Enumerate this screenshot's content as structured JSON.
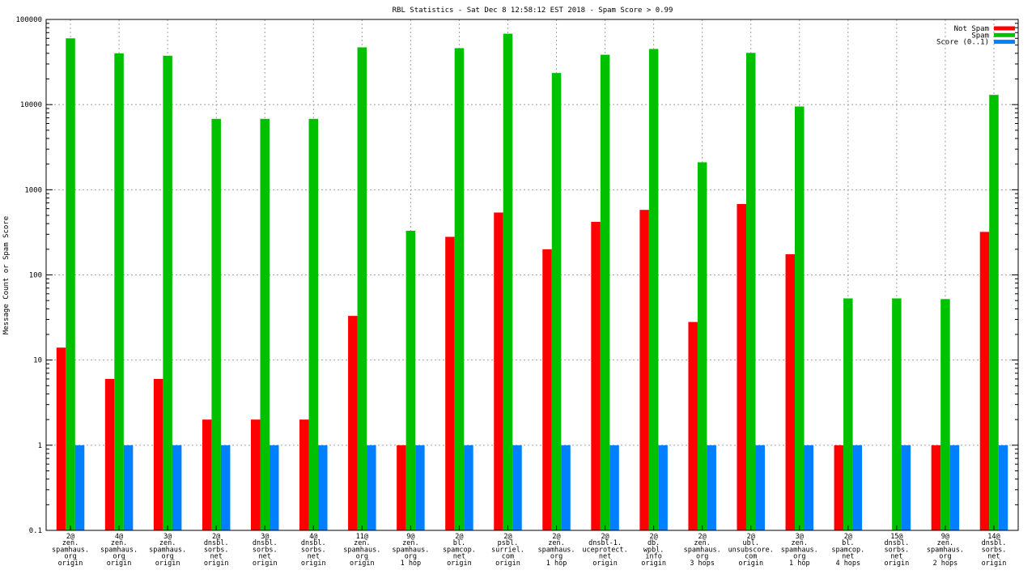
{
  "chart_data": {
    "type": "bar",
    "title": "RBL Statistics - Sat Dec  8 12:58:12 EST 2018 - Spam Score > 0.99",
    "xlabel": "",
    "ylabel": "Message Count or Spam Score",
    "yscale": "log",
    "ylim": [
      0.1,
      100000
    ],
    "yticks": [
      "0.1",
      "1",
      "10",
      "100",
      "1000",
      "10000",
      "100000"
    ],
    "grid": true,
    "legend_position": "top-right",
    "categories": [
      [
        "2@",
        "zen.",
        "spamhaus.",
        "org",
        "origin"
      ],
      [
        "4@",
        "zen.",
        "spamhaus.",
        "org",
        "origin"
      ],
      [
        "3@",
        "zen.",
        "spamhaus.",
        "org",
        "origin"
      ],
      [
        "2@",
        "dnsbl.",
        "sorbs.",
        "net",
        "origin"
      ],
      [
        "3@",
        "dnsbl.",
        "sorbs.",
        "net",
        "origin"
      ],
      [
        "4@",
        "dnsbl.",
        "sorbs.",
        "net",
        "origin"
      ],
      [
        "11@",
        "zen.",
        "spamhaus.",
        "org",
        "origin"
      ],
      [
        "9@",
        "zen.",
        "spamhaus.",
        "org",
        "1 hop"
      ],
      [
        "2@",
        "bl.",
        "spamcop.",
        "net",
        "origin"
      ],
      [
        "2@",
        "psbl.",
        "surriel.",
        "com",
        "origin"
      ],
      [
        "2@",
        "zen.",
        "spamhaus.",
        "org",
        "1 hop"
      ],
      [
        "2@",
        "dnsbl-1.",
        "uceprotect.",
        "net",
        "origin"
      ],
      [
        "2@",
        "db.",
        "wpbl.",
        "info",
        "origin"
      ],
      [
        "2@",
        "zen.",
        "spamhaus.",
        "org",
        "3 hops"
      ],
      [
        "2@",
        "ubl.",
        "unsubscore.",
        "com",
        "origin"
      ],
      [
        "3@",
        "zen.",
        "spamhaus.",
        "org",
        "1 hop"
      ],
      [
        "2@",
        "bl.",
        "spamcop.",
        "net",
        "4 hops"
      ],
      [
        "15@",
        "dnsbl.",
        "sorbs.",
        "net",
        "origin"
      ],
      [
        "9@",
        "zen.",
        "spamhaus.",
        "org",
        "2 hops"
      ],
      [
        "14@",
        "dnsbl.",
        "sorbs.",
        "net",
        "origin"
      ]
    ],
    "series": [
      {
        "name": "Not Spam",
        "color": "#ff0000",
        "values": [
          14,
          6,
          6,
          2,
          2,
          2,
          33,
          1,
          280,
          540,
          200,
          420,
          580,
          28,
          680,
          175,
          1,
          0,
          1,
          320
        ]
      },
      {
        "name": "Spam",
        "color": "#00c000",
        "values": [
          60000,
          40000,
          37500,
          6800,
          6800,
          6800,
          47000,
          330,
          46000,
          68000,
          23500,
          38500,
          45000,
          2100,
          40500,
          9500,
          53,
          53,
          52,
          13000
        ]
      },
      {
        "name": "Score (0..1)",
        "color": "#0080ff",
        "values": [
          1,
          1,
          1,
          1,
          1,
          1,
          1,
          1,
          1,
          1,
          1,
          1,
          1,
          1,
          1,
          1,
          1,
          1,
          1,
          1
        ]
      }
    ]
  }
}
